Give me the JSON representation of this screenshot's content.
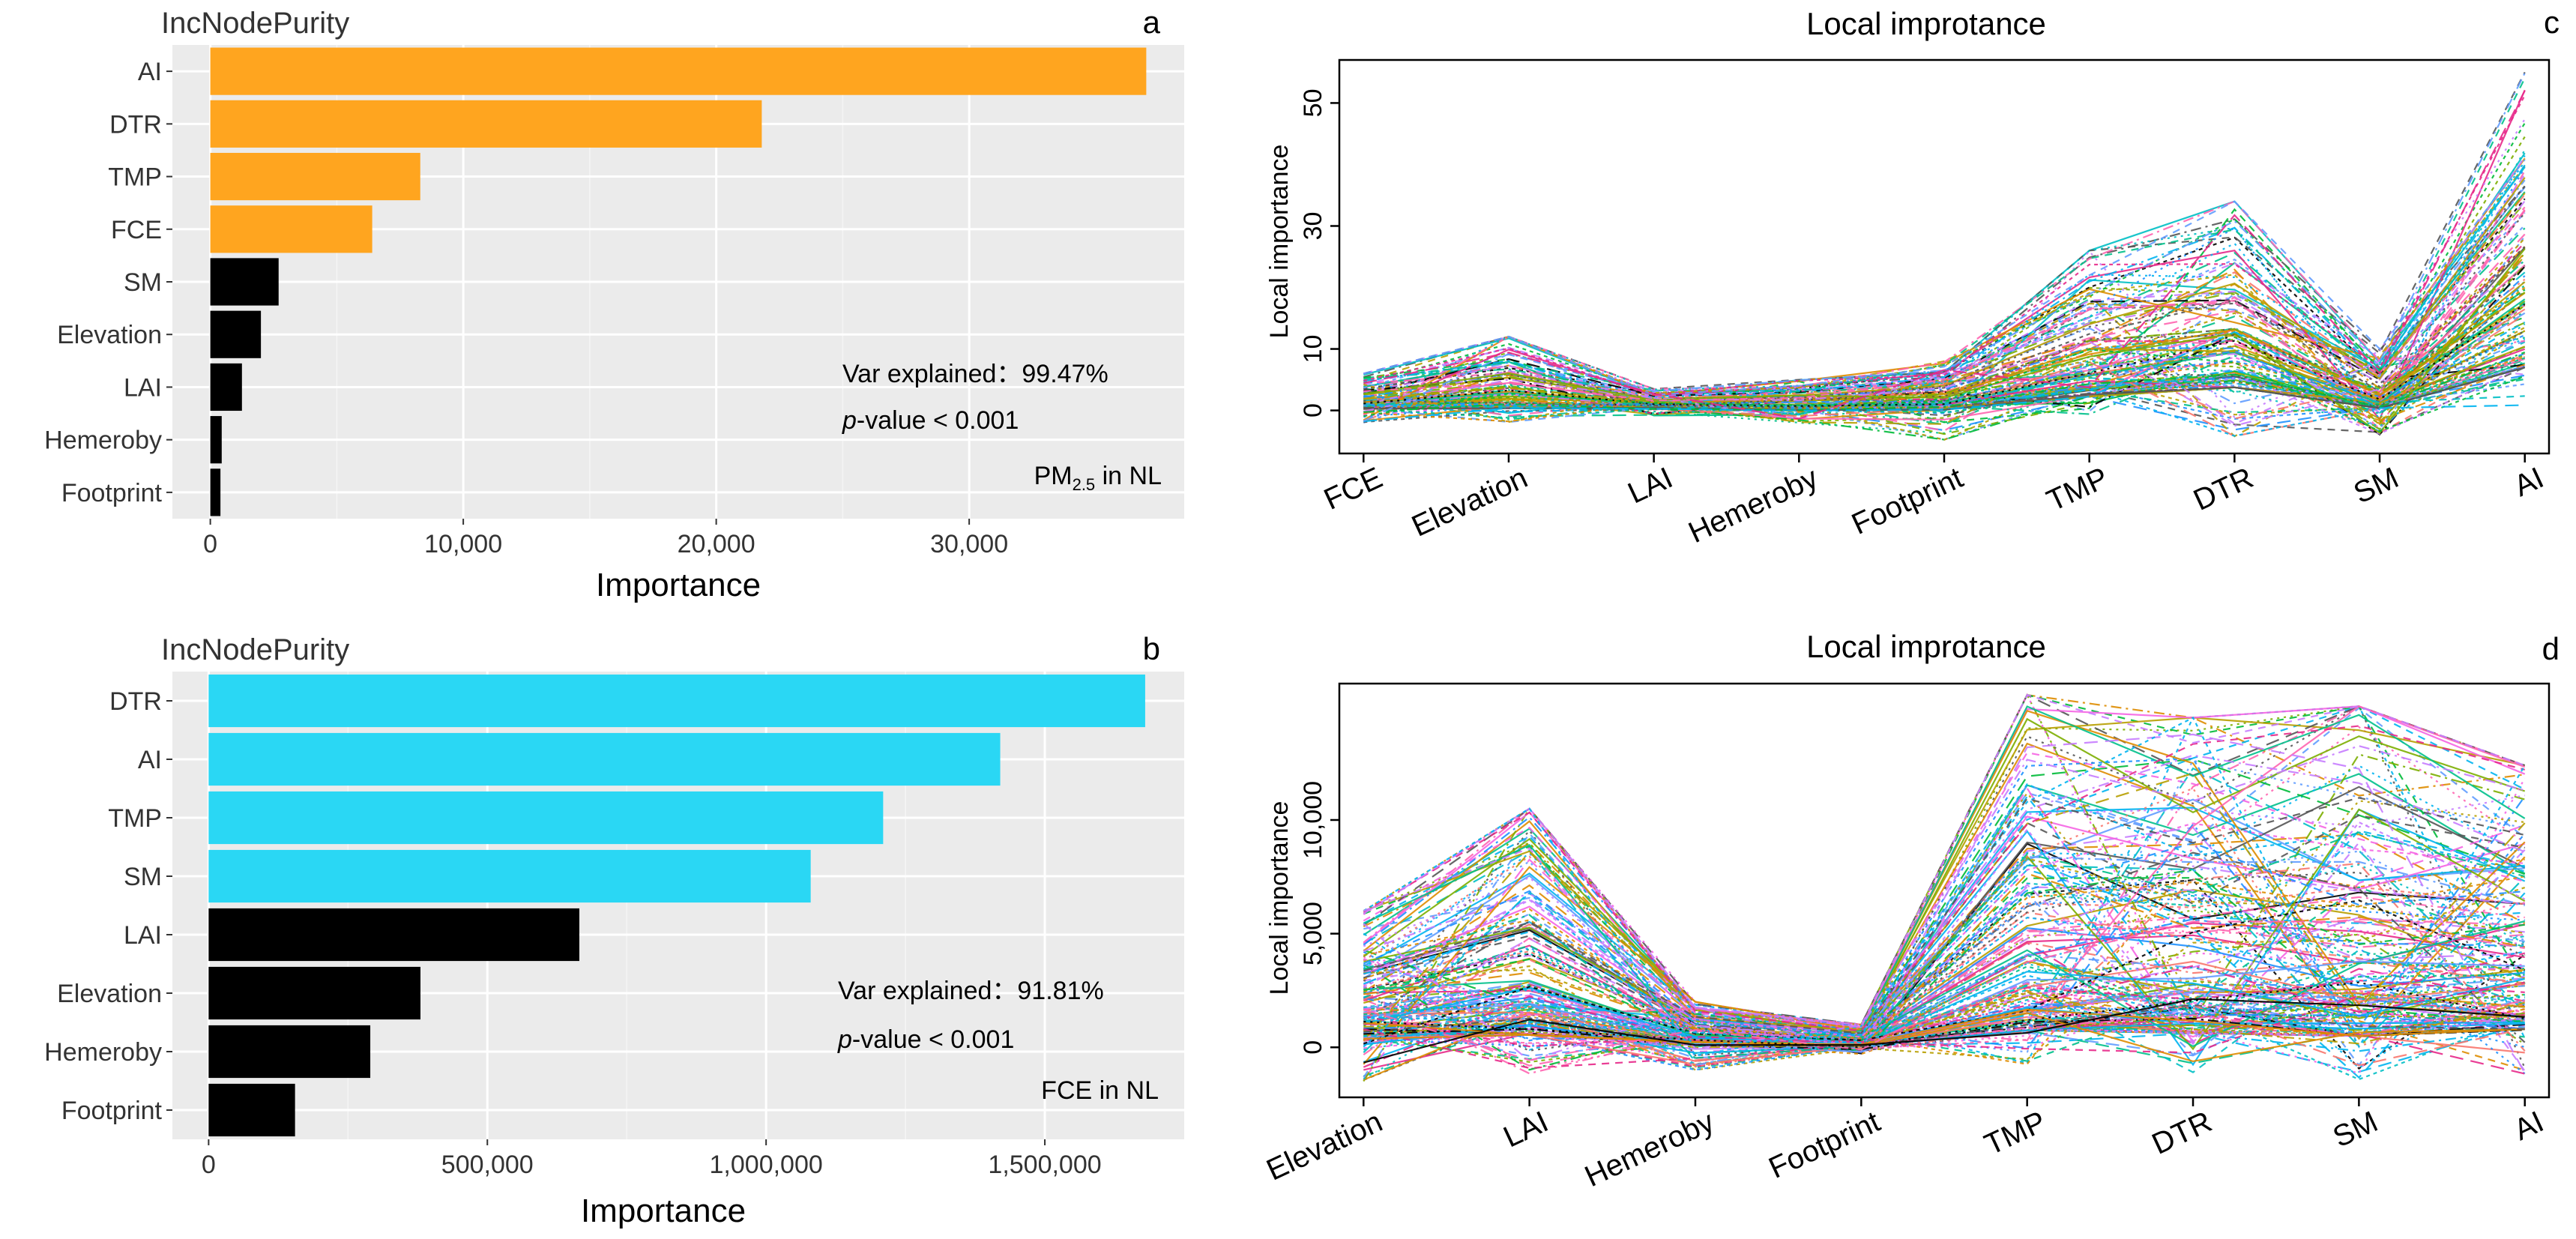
{
  "chart_data": [
    {
      "panel": "a",
      "type": "bar",
      "orientation": "horizontal",
      "title": "IncNodePurity",
      "xlabel": "Importance",
      "categories": [
        "AI",
        "DTR",
        "TMP",
        "FCE",
        "SM",
        "Elevation",
        "LAI",
        "Hemeroby",
        "Footprint"
      ],
      "values": [
        37000,
        21800,
        8300,
        6400,
        2700,
        2000,
        1250,
        450,
        400
      ],
      "highlight_count": 4,
      "highlight_color": "#FFA51F",
      "other_color": "#000000",
      "xlim": [
        -1500,
        38500
      ],
      "xticks": [
        0,
        10000,
        20000,
        30000
      ],
      "xtick_labels": [
        "0",
        "10,000",
        "20,000",
        "30,000"
      ],
      "annotation_var": "Var explained：99.47%",
      "annotation_p_italic": "p",
      "annotation_p_rest": "-value < 0.001",
      "annotation_tag_main": "PM",
      "annotation_tag_sub": "2.5",
      "annotation_tag_rest": " in NL"
    },
    {
      "panel": "b",
      "type": "bar",
      "orientation": "horizontal",
      "title": "IncNodePurity",
      "xlabel": "Importance",
      "categories": [
        "DTR",
        "AI",
        "TMP",
        "SM",
        "LAI",
        "Elevation",
        "Hemeroby",
        "Footprint"
      ],
      "values": [
        1680000,
        1420000,
        1210000,
        1080000,
        665000,
        380000,
        290000,
        155000
      ],
      "highlight_count": 4,
      "highlight_color": "#2AD7F4",
      "other_color": "#000000",
      "xlim": [
        -65000,
        1750000
      ],
      "xticks": [
        0,
        500000,
        1000000,
        1500000
      ],
      "xtick_labels": [
        "0",
        "500,000",
        "1,000,000",
        "1,500,000"
      ],
      "annotation_var": "Var explained：91.81%",
      "annotation_p_italic": "p",
      "annotation_p_rest": "-value < 0.001",
      "annotation_tag_main": "FCE in NL",
      "annotation_tag_sub": "",
      "annotation_tag_rest": ""
    },
    {
      "panel": "c",
      "type": "line",
      "title": "Local improtance",
      "ylabel": "Local importance",
      "categories": [
        "FCE",
        "Elevation",
        "LAI",
        "Hemeroby",
        "Footprint",
        "TMP",
        "DTR",
        "SM",
        "AI"
      ],
      "ylim": [
        -7,
        57
      ],
      "yticks": [
        0,
        10,
        30,
        50
      ],
      "ytick_labels": [
        "0",
        "10",
        "30",
        "50"
      ],
      "series_count": 140,
      "mean_profile": [
        1,
        1.5,
        1,
        0.3,
        0.5,
        9,
        15,
        1.5,
        28
      ],
      "max_profile": [
        6,
        12,
        3.5,
        5,
        8,
        26,
        34,
        10,
        55
      ],
      "min_profile": [
        -2,
        -2,
        -1,
        -2,
        -5,
        -1,
        -5,
        -4,
        -1
      ]
    },
    {
      "panel": "d",
      "type": "line",
      "title": "Local improtance",
      "ylabel": "Local importance",
      "categories": [
        "Elevation",
        "LAI",
        "Hemeroby",
        "Footprint",
        "TMP",
        "DTR",
        "SM",
        "AI"
      ],
      "ylim": [
        -2200,
        16000
      ],
      "yticks": [
        0,
        5000,
        10000
      ],
      "ytick_labels": [
        "0",
        "5,000",
        "10,000"
      ],
      "series_count": 200,
      "mean_profile": [
        1500,
        2200,
        400,
        200,
        3000,
        2500,
        2000,
        3200
      ],
      "max_profile": [
        6000,
        10500,
        2000,
        1000,
        15500,
        14500,
        15000,
        12400
      ],
      "min_profile": [
        -1500,
        -1200,
        -1000,
        -300,
        -800,
        -1200,
        -1500,
        -1200
      ]
    }
  ],
  "panel_letters": [
    "a",
    "b",
    "c",
    "d"
  ],
  "line_palette": [
    "#F564E3",
    "#00BFC4",
    "#000000",
    "#619CFF",
    "#00BA38",
    "#F8766D",
    "#B79F00",
    "#E7298A",
    "#1E90FF",
    "#00C08B",
    "#DE8C00",
    "#7CAE00",
    "#C77CFF",
    "#FF64B0",
    "#00B4F0",
    "#555555"
  ]
}
